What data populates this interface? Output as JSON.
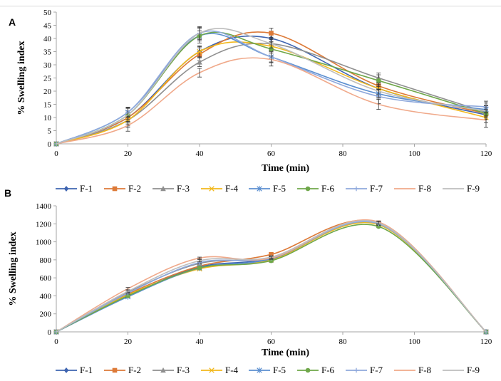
{
  "series_styles": [
    {
      "name": "F-1",
      "color": "#3e64b0",
      "marker": "diamond"
    },
    {
      "name": "F-2",
      "color": "#dd7a38",
      "marker": "square"
    },
    {
      "name": "F-3",
      "color": "#8f8f8f",
      "marker": "triangle"
    },
    {
      "name": "F-4",
      "color": "#f2b81c",
      "marker": "x"
    },
    {
      "name": "F-5",
      "color": "#5b8fd0",
      "marker": "star"
    },
    {
      "name": "F-6",
      "color": "#6fa74a",
      "marker": "circle"
    },
    {
      "name": "F-7",
      "color": "#8fa9dc",
      "marker": "plus"
    },
    {
      "name": "F-8",
      "color": "#f0a98a",
      "marker": "none"
    },
    {
      "name": "F-9",
      "color": "#bdbdbd",
      "marker": "none"
    }
  ],
  "chart_data": [
    {
      "panel_label": "A",
      "type": "line",
      "smooth": true,
      "xlabel": "Time (min)",
      "ylabel": "% Swelling index",
      "x": [
        0,
        20,
        40,
        60,
        90,
        120
      ],
      "xticks": [
        0,
        20,
        40,
        60,
        80,
        100,
        120
      ],
      "yticks": [
        0,
        5,
        10,
        15,
        20,
        25,
        30,
        35,
        40,
        45,
        50
      ],
      "xlim": [
        0,
        120
      ],
      "ylim": [
        0,
        50
      ],
      "grid": false,
      "legend_position": "bottom",
      "error_bars": true,
      "series": [
        {
          "name": "F-1",
          "values": [
            0,
            10,
            35,
            40,
            21,
            11
          ]
        },
        {
          "name": "F-2",
          "values": [
            0,
            10,
            34,
            42,
            22,
            11.5
          ]
        },
        {
          "name": "F-3",
          "values": [
            0,
            9,
            31,
            38,
            25,
            12
          ]
        },
        {
          "name": "F-4",
          "values": [
            0,
            9,
            35,
            37,
            21,
            10
          ]
        },
        {
          "name": "F-5",
          "values": [
            0,
            12,
            41,
            33,
            19,
            13
          ]
        },
        {
          "name": "F-6",
          "values": [
            0,
            11,
            41,
            36,
            24,
            11.5
          ]
        },
        {
          "name": "F-7",
          "values": [
            0,
            12,
            42,
            33,
            18,
            14
          ]
        },
        {
          "name": "F-8",
          "values": [
            0,
            7,
            27,
            32,
            15,
            9
          ]
        },
        {
          "name": "F-9",
          "values": [
            0,
            11,
            42,
            38,
            20,
            12.5
          ]
        }
      ]
    },
    {
      "panel_label": "B",
      "type": "line",
      "smooth": true,
      "xlabel": "Time (min)",
      "ylabel": "% Swelling index",
      "x": [
        0,
        20,
        40,
        60,
        90,
        120
      ],
      "xticks": [
        0,
        20,
        40,
        60,
        80,
        100,
        120
      ],
      "yticks": [
        0,
        200,
        400,
        600,
        800,
        1000,
        1200,
        1400
      ],
      "xlim": [
        0,
        120
      ],
      "ylim": [
        0,
        1400
      ],
      "grid": false,
      "legend_position": "bottom",
      "error_bars": true,
      "series": [
        {
          "name": "F-1",
          "values": [
            0,
            400,
            720,
            820,
            1200,
            0
          ]
        },
        {
          "name": "F-2",
          "values": [
            0,
            420,
            730,
            860,
            1210,
            0
          ]
        },
        {
          "name": "F-3",
          "values": [
            0,
            440,
            760,
            830,
            1200,
            0
          ]
        },
        {
          "name": "F-4",
          "values": [
            0,
            410,
            700,
            800,
            1190,
            0
          ]
        },
        {
          "name": "F-5",
          "values": [
            0,
            390,
            710,
            810,
            1200,
            0
          ]
        },
        {
          "name": "F-6",
          "values": [
            0,
            400,
            710,
            790,
            1170,
            0
          ]
        },
        {
          "name": "F-7",
          "values": [
            0,
            430,
            770,
            820,
            1200,
            0
          ]
        },
        {
          "name": "F-8",
          "values": [
            0,
            480,
            820,
            820,
            1220,
            0
          ]
        },
        {
          "name": "F-9",
          "values": [
            0,
            450,
            790,
            830,
            1210,
            0
          ]
        }
      ]
    }
  ]
}
